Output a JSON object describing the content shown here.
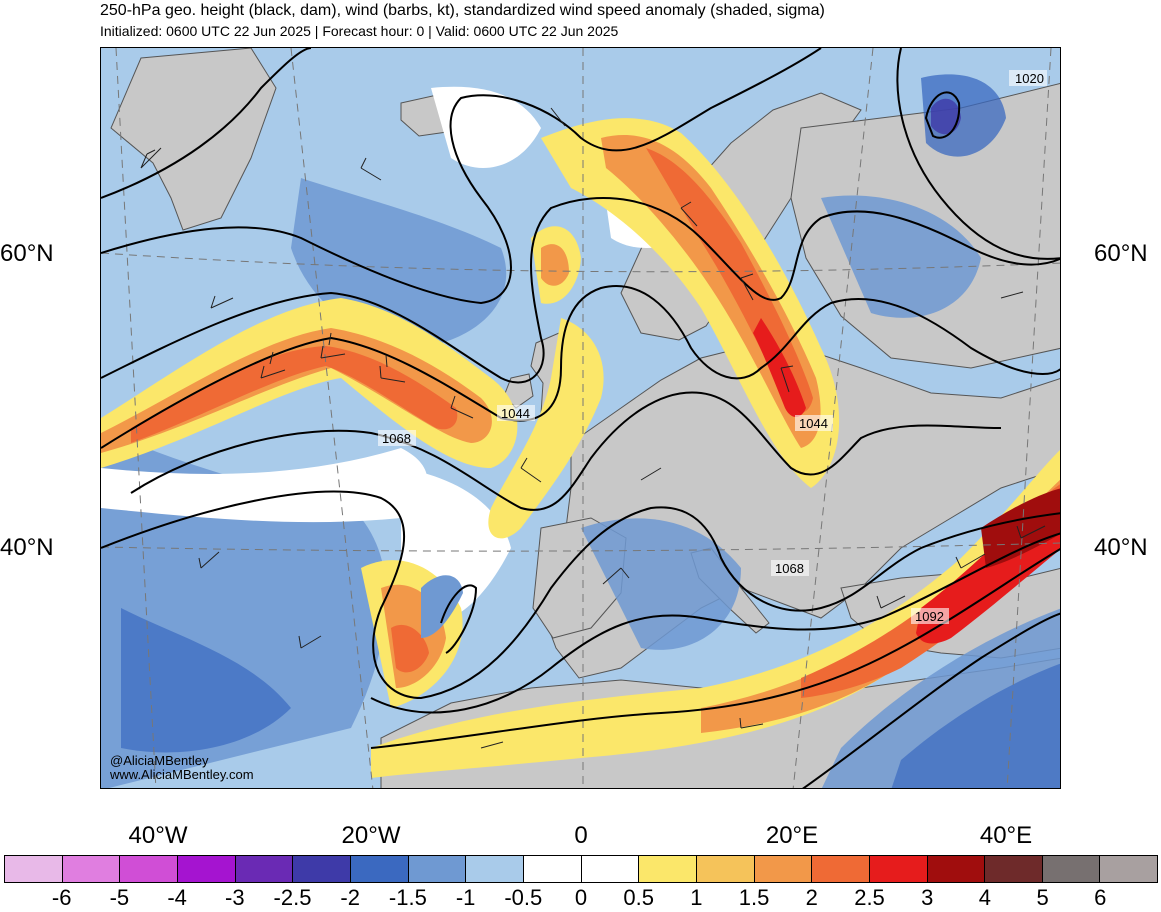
{
  "header": {
    "title": "250-hPa geo. height (black, dam), wind (barbs, kt), standardized wind speed anomaly (shaded, sigma)",
    "subtitle": "Initialized: 0600 UTC 22 Jun 2025 | Forecast hour: 0 | Valid: 0600 UTC 22 Jun 2025"
  },
  "map": {
    "latitude_labels": [
      "60°N",
      "40°N"
    ],
    "longitude_labels": [
      "40°W",
      "20°W",
      "0",
      "20°E",
      "40°E"
    ],
    "contour_labels": [
      "1020",
      "1044",
      "1044",
      "1068",
      "1068",
      "1092"
    ],
    "land_color": "#c8c8c8",
    "coastline_color": "#555555",
    "contour_color": "#000000"
  },
  "credits": {
    "handle": "@AliciaMBentley",
    "website": "www.AliciaMBentley.com"
  },
  "colorbar": {
    "labels": [
      "-6",
      "-5",
      "-4",
      "-3",
      "-2.5",
      "-2",
      "-1.5",
      "-1",
      "-0.5",
      "0",
      "0.5",
      "1",
      "1.5",
      "2",
      "2.5",
      "3",
      "4",
      "5",
      "6"
    ],
    "colors": [
      "#e8b9e8",
      "#e07ee0",
      "#d04ed6",
      "#a514d0",
      "#6a2ab4",
      "#3e3aa8",
      "#3b69c0",
      "#6f99d2",
      "#a9cbea",
      "#ffffff",
      "#ffffff",
      "#fbe76a",
      "#f5c35a",
      "#f29849",
      "#ef6a35",
      "#e61c1c",
      "#a00d0d",
      "#6e2a2a",
      "#777070",
      "#a8a0a0"
    ]
  }
}
